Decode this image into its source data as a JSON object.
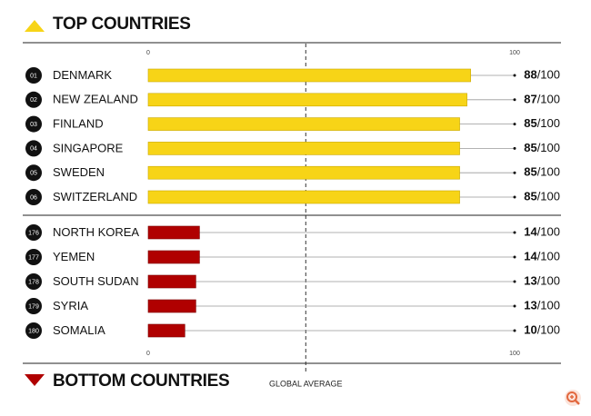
{
  "chart_data": [
    {
      "type": "bar",
      "title": "TOP COUNTRIES",
      "categories": [
        "DENMARK",
        "NEW ZEALAND",
        "FINLAND",
        "SINGAPORE",
        "SWEDEN",
        "SWITZERLAND"
      ],
      "ranks": [
        "01",
        "02",
        "03",
        "04",
        "05",
        "06"
      ],
      "values": [
        88,
        87,
        85,
        85,
        85,
        85
      ],
      "value_labels": [
        "88/100",
        "87/100",
        "85/100",
        "85/100",
        "85/100",
        "85/100"
      ],
      "color": "#f7d417",
      "xlim": [
        0,
        100
      ],
      "xticks": [
        0,
        100
      ],
      "reference_line": {
        "value": 43,
        "label": "GLOBAL AVERAGE"
      }
    },
    {
      "type": "bar",
      "title": "BOTTOM COUNTRIES",
      "categories": [
        "NORTH KOREA",
        "YEMEN",
        "SOUTH SUDAN",
        "SYRIA",
        "SOMALIA"
      ],
      "ranks": [
        "176",
        "177",
        "178",
        "179",
        "180"
      ],
      "values": [
        14,
        14,
        13,
        13,
        10
      ],
      "value_labels": [
        "14/100",
        "14/100",
        "13/100",
        "13/100",
        "10/100"
      ],
      "color": "#b00000",
      "xlim": [
        0,
        100
      ],
      "xticks": [
        0,
        100
      ]
    }
  ]
}
